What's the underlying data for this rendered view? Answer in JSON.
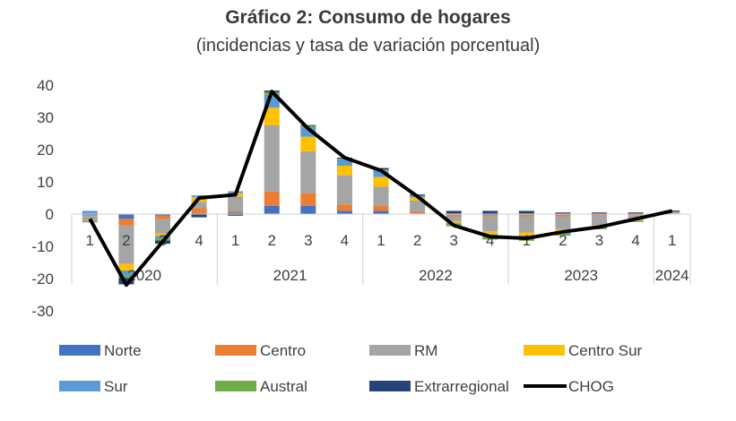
{
  "chart_data": {
    "type": "bar",
    "title": "Gráfico 2: Consumo de hogares",
    "subtitle": "(incidencias y tasa de variación porcentual)",
    "ylim": [
      -30,
      40
    ],
    "yticks": [
      40,
      30,
      20,
      10,
      0,
      -10,
      -20,
      -30
    ],
    "quarters": [
      "1",
      "2",
      "3",
      "4",
      "1",
      "2",
      "3",
      "4",
      "1",
      "2",
      "3",
      "4",
      "1",
      "2",
      "3",
      "4",
      "1"
    ],
    "years": [
      {
        "label": "2020",
        "span": 4
      },
      {
        "label": "2021",
        "span": 4
      },
      {
        "label": "2022",
        "span": 4
      },
      {
        "label": "2023",
        "span": 4
      },
      {
        "label": "2024",
        "span": 1
      }
    ],
    "series": [
      {
        "name": "Norte",
        "color": "#4472C4",
        "values": [
          -0.3,
          -1.5,
          -0.5,
          0.3,
          0.5,
          2.5,
          2.5,
          1.0,
          1.0,
          0.2,
          -0.2,
          -0.3,
          -0.2,
          -0.2,
          -0.1,
          0.0,
          0.1
        ]
      },
      {
        "name": "Centro",
        "color": "#ED7D31",
        "values": [
          -0.3,
          -2.0,
          -1.0,
          1.5,
          0.5,
          4.5,
          4.0,
          2.0,
          1.5,
          0.5,
          -0.5,
          -0.5,
          -0.5,
          -0.5,
          -0.3,
          -0.3,
          0.1
        ]
      },
      {
        "name": "RM",
        "color": "#A5A5A5",
        "values": [
          -1.5,
          -12.0,
          -4.5,
          2.0,
          4.5,
          20.5,
          13.0,
          9.0,
          6.0,
          3.5,
          -1.5,
          -4.5,
          -5.0,
          -4.0,
          -3.0,
          -1.5,
          0.3
        ]
      },
      {
        "name": "Centro Sur",
        "color": "#FFC000",
        "values": [
          -0.2,
          -2.0,
          -0.8,
          1.5,
          1.0,
          5.5,
          4.5,
          3.0,
          3.0,
          1.0,
          -0.5,
          -1.0,
          -1.0,
          -0.8,
          -0.5,
          -0.3,
          0.1
        ]
      },
      {
        "name": "Sur",
        "color": "#5B9BD5",
        "values": [
          1.0,
          -1.5,
          -0.8,
          0.5,
          0.5,
          4.0,
          2.8,
          2.0,
          2.0,
          0.5,
          -0.3,
          -0.8,
          -0.8,
          -0.6,
          -0.4,
          -0.2,
          0.1
        ]
      },
      {
        "name": "Austral",
        "color": "#70AD47",
        "values": [
          -0.1,
          -0.8,
          -0.6,
          0.0,
          0.1,
          0.8,
          0.5,
          0.2,
          0.3,
          0.1,
          -0.8,
          -0.8,
          -0.8,
          -0.6,
          -0.4,
          -0.2,
          0.1
        ]
      },
      {
        "name": "Extrarregional",
        "color": "#264478",
        "values": [
          -0.1,
          -2.0,
          -1.0,
          -1.0,
          -0.5,
          0.5,
          0.3,
          0.3,
          0.5,
          0.3,
          1.0,
          1.0,
          1.0,
          0.5,
          0.5,
          0.5,
          0.3
        ]
      },
      {
        "name": "CHOG",
        "color": "#000000",
        "type": "line",
        "values": [
          -1.5,
          -22.0,
          -8.5,
          5.0,
          6.0,
          38.0,
          26.5,
          17.5,
          13.5,
          5.5,
          -3.5,
          -7.0,
          -7.5,
          -5.5,
          -4.0,
          -1.5,
          1.0
        ]
      }
    ]
  }
}
